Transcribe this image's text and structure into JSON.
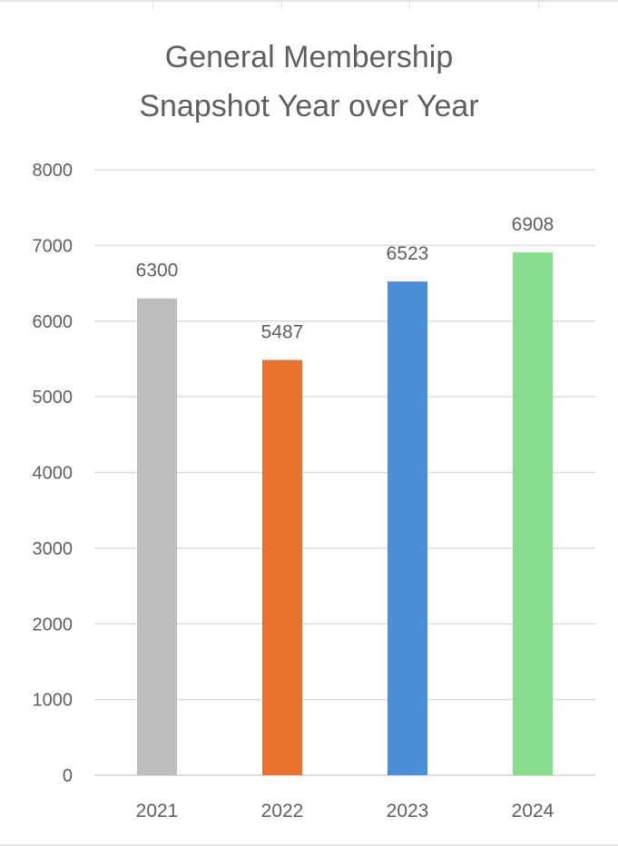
{
  "chart_data": {
    "type": "bar",
    "title_lines": [
      "General Membership",
      "Snapshot Year over Year"
    ],
    "categories": [
      "2021",
      "2022",
      "2023",
      "2024"
    ],
    "values": [
      6300,
      5487,
      6523,
      6908
    ],
    "data_labels": [
      "6300",
      "5487",
      "6523",
      "6908"
    ],
    "colors": [
      "#bdbdbd",
      "#e8722e",
      "#4a90d9",
      "#86df8c"
    ],
    "ylim": [
      0,
      8000
    ],
    "yticks": [
      0,
      1000,
      2000,
      3000,
      4000,
      5000,
      6000,
      7000,
      8000
    ],
    "ytick_labels": [
      "0",
      "1000",
      "2000",
      "3000",
      "4000",
      "5000",
      "6000",
      "7000",
      "8000"
    ],
    "grid": true,
    "legend": "none"
  }
}
